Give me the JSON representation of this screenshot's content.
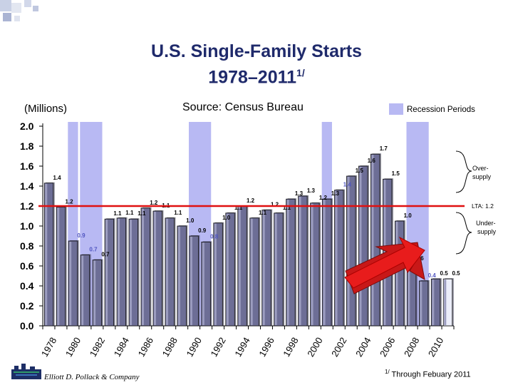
{
  "header": {
    "title_line1": "U.S. Single-Family Starts",
    "title_line2": "1978–2011",
    "title_sup": "1/",
    "unit": "(Millions)",
    "source": "Source: Census Bureau",
    "legend_recession": "Recession Periods"
  },
  "footer": {
    "company": "Elliott D. Pollack & Company",
    "footnote_sup": "1/",
    "footnote": "Through Febuary 2011"
  },
  "colors": {
    "bar_fill": "#6d6e96",
    "bar_last": "#eceefa",
    "recession": "#b8b9f3",
    "lta_line": "#e01010",
    "arrow": "#e81c1c",
    "label_blue": "#5055c0",
    "title": "#1f2a6b"
  },
  "chart_data": {
    "type": "bar",
    "title": "U.S. Single-Family Starts 1978–2011",
    "ylabel": "(Millions)",
    "ylim": [
      0,
      2.0
    ],
    "yticks": [
      "0.0",
      "0.2",
      "0.4",
      "0.6",
      "0.8",
      "1.0",
      "1.2",
      "1.4",
      "1.6",
      "1.8",
      "2.0"
    ],
    "categories": [
      "1978",
      "1979",
      "1980",
      "1981",
      "1982",
      "1983",
      "1984",
      "1985",
      "1986",
      "1987",
      "1988",
      "1989",
      "1990",
      "1991",
      "1992",
      "1993",
      "1994",
      "1995",
      "1996",
      "1997",
      "1998",
      "1999",
      "2000",
      "2001",
      "2002",
      "2003",
      "2004",
      "2005",
      "2006",
      "2007",
      "2008",
      "2009",
      "2010",
      "2011"
    ],
    "xtick_labels": [
      "1978",
      "1980",
      "1982",
      "1984",
      "1986",
      "1988",
      "1990",
      "1992",
      "1994",
      "1996",
      "1998",
      "2000",
      "2002",
      "2004",
      "2006",
      "2008",
      "2010"
    ],
    "values": [
      1.43,
      1.19,
      0.85,
      0.71,
      0.66,
      1.07,
      1.08,
      1.07,
      1.18,
      1.15,
      1.08,
      1.0,
      0.9,
      0.84,
      1.03,
      1.13,
      1.2,
      1.08,
      1.16,
      1.13,
      1.27,
      1.3,
      1.23,
      1.27,
      1.36,
      1.5,
      1.6,
      1.72,
      1.47,
      1.05,
      0.62,
      0.45,
      0.47,
      0.47
    ],
    "data_labels": [
      "1.4",
      "1.2",
      "0.9",
      "0.7",
      "0.7",
      "1.1",
      "1.1",
      "1.1",
      "1.2",
      "1.1",
      "1.1",
      "1.0",
      "0.9",
      "0.8",
      "1.0",
      "1.1",
      "1.2",
      "1.1",
      "1.2",
      "1.1",
      "1.3",
      "1.3",
      "1.2",
      "1.3",
      "1.4",
      "1.5",
      "1.6",
      "1.7",
      "1.5",
      "1.0",
      "0.6",
      "0.4",
      "0.5",
      "0.5"
    ],
    "blue_label_indices": [
      2,
      3,
      13,
      24,
      31
    ],
    "recession_periods": [
      [
        1980,
        1980
      ],
      [
        1981,
        1982
      ],
      [
        1990,
        1991
      ],
      [
        2001,
        2001
      ],
      [
        2008,
        2009
      ]
    ],
    "lta": {
      "value": 1.2,
      "label": "LTA: 1.2"
    },
    "annotations": {
      "over": [
        "Over-",
        "supply"
      ],
      "under": [
        "Under-",
        "supply"
      ]
    }
  }
}
